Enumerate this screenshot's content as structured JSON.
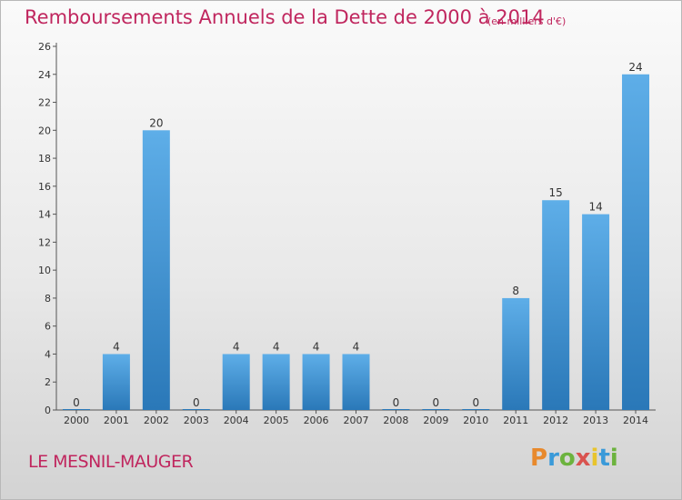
{
  "title": "Remboursements Annuels de la Dette de 2000 à 2014",
  "unit": "(en milliers d'€)",
  "place": "LE MESNIL-MAUGER",
  "logo_text": "Proxiti",
  "colors": {
    "title": "#c0265e",
    "bar_top": "#5eaee8",
    "bar_bottom": "#2a78b8",
    "axis": "#555555"
  },
  "chart_data": {
    "type": "bar",
    "title": "Remboursements Annuels de la Dette de 2000 à 2014",
    "categories": [
      "2000",
      "2001",
      "2002",
      "2003",
      "2004",
      "2005",
      "2006",
      "2007",
      "2008",
      "2009",
      "2010",
      "2011",
      "2012",
      "2013",
      "2014"
    ],
    "values": [
      0,
      4,
      20,
      0,
      4,
      4,
      4,
      4,
      0,
      0,
      0,
      8,
      15,
      14,
      24
    ],
    "ylim": [
      0,
      26
    ],
    "yticks": [
      0,
      2,
      4,
      6,
      8,
      10,
      12,
      14,
      16,
      18,
      20,
      22,
      24,
      26
    ],
    "grid": false,
    "data_labels": true
  }
}
